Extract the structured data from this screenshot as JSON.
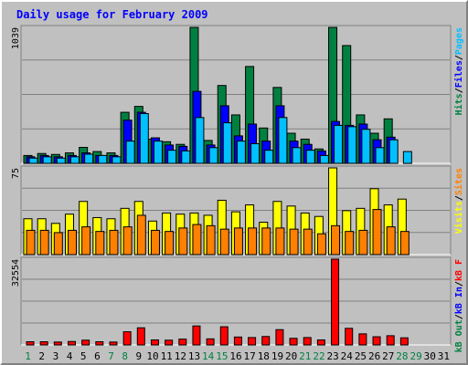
{
  "title": "Daily usage for February 2009",
  "colors": {
    "background": "#c0c0c0",
    "title": "#0000ff",
    "hits": "#008040",
    "files": "#0000ff",
    "pages": "#00c0ff",
    "visits": "#ffff00",
    "sites": "#ff8000",
    "kbf": "#ff0000",
    "kb_in": "#0000ff",
    "kb_out": "#008040",
    "weekend_label": "#008040",
    "weekday_label": "#000000"
  },
  "panels": {
    "top": {
      "max_label": "1039",
      "legend": [
        {
          "text": "Hits",
          "color": "#008040"
        },
        {
          "text": "/",
          "color": "#000000"
        },
        {
          "text": "Files",
          "color": "#0000ff"
        },
        {
          "text": "/",
          "color": "#000000"
        },
        {
          "text": "Pages",
          "color": "#00c0ff"
        }
      ]
    },
    "middle": {
      "max_label": "75",
      "legend": [
        {
          "text": "Visits",
          "color": "#ffff00"
        },
        {
          "text": "/",
          "color": "#000000"
        },
        {
          "text": "Sites",
          "color": "#ff8000"
        }
      ]
    },
    "bottom": {
      "max_label": "32554",
      "legend": [
        {
          "text": "kB Out",
          "color": "#008040"
        },
        {
          "text": "/",
          "color": "#000000"
        },
        {
          "text": "kB In",
          "color": "#0000ff"
        },
        {
          "text": "/",
          "color": "#000000"
        },
        {
          "text": "kB F",
          "color": "#ff0000"
        }
      ]
    }
  },
  "chart_data": {
    "type": "bar",
    "title": "Daily usage for February 2009",
    "categories": [
      "1",
      "2",
      "3",
      "4",
      "5",
      "6",
      "7",
      "8",
      "9",
      "10",
      "11",
      "12",
      "13",
      "14",
      "15",
      "16",
      "17",
      "18",
      "19",
      "20",
      "21",
      "22",
      "23",
      "24",
      "25",
      "26",
      "27",
      "28",
      "29",
      "30",
      "31"
    ],
    "weekend_days": [
      "1",
      "7",
      "8",
      "14",
      "15",
      "21",
      "22",
      "28",
      "29"
    ],
    "panels": [
      {
        "name": "top",
        "ymax": 1039,
        "series": [
          {
            "name": "Hits",
            "values": [
              60,
              75,
              68,
              80,
              122,
              90,
              80,
              390,
              435,
              185,
              165,
              145,
              1039,
              175,
              595,
              370,
              740,
              270,
              580,
              230,
              185,
              110,
              1039,
              900,
              370,
              230,
              340,
              null,
              null,
              null,
              null
            ]
          },
          {
            "name": "Files",
            "values": [
              50,
              60,
              50,
              60,
              80,
              60,
              60,
              330,
              390,
              195,
              140,
              130,
              550,
              140,
              440,
              210,
              300,
              170,
              440,
              170,
              145,
              95,
              320,
              290,
              300,
              180,
              200,
              null,
              null,
              null,
              null
            ]
          },
          {
            "name": "Pages",
            "values": [
              40,
              50,
              40,
              50,
              70,
              60,
              50,
              170,
              380,
              170,
              100,
              95,
              350,
              120,
              310,
              170,
              150,
              100,
              350,
              120,
              100,
              60,
              290,
              280,
              260,
              120,
              180,
              90,
              null,
              null,
              null
            ]
          }
        ]
      },
      {
        "name": "middle",
        "ymax": 75,
        "series": [
          {
            "name": "Visits",
            "values": [
              31,
              31,
              27,
              35,
              46,
              32,
              31,
              40,
              46,
              29,
              36,
              35,
              36,
              34,
              47,
              37,
              43,
              28,
              46,
              42,
              36,
              33,
              75,
              38,
              40,
              57,
              43,
              48,
              null,
              null,
              null
            ]
          },
          {
            "name": "Sites",
            "values": [
              21,
              21,
              19,
              21,
              24,
              20,
              21,
              24,
              34,
              21,
              20,
              23,
              26,
              25,
              22,
              23,
              23,
              23,
              23,
              22,
              22,
              18,
              25,
              20,
              21,
              39,
              24,
              20,
              null,
              null,
              null
            ]
          }
        ]
      },
      {
        "name": "bottom",
        "ymax": 32554,
        "series": [
          {
            "name": "kB F",
            "values": [
              1200,
              1200,
              1100,
              1300,
              1800,
              1200,
              1100,
              5000,
              6500,
              1900,
              1800,
              2200,
              7200,
              2300,
              6900,
              3000,
              2800,
              3200,
              5800,
              2500,
              2800,
              1900,
              32554,
              6300,
              4200,
              3100,
              3500,
              2700,
              null,
              null,
              null
            ]
          }
        ]
      }
    ]
  }
}
